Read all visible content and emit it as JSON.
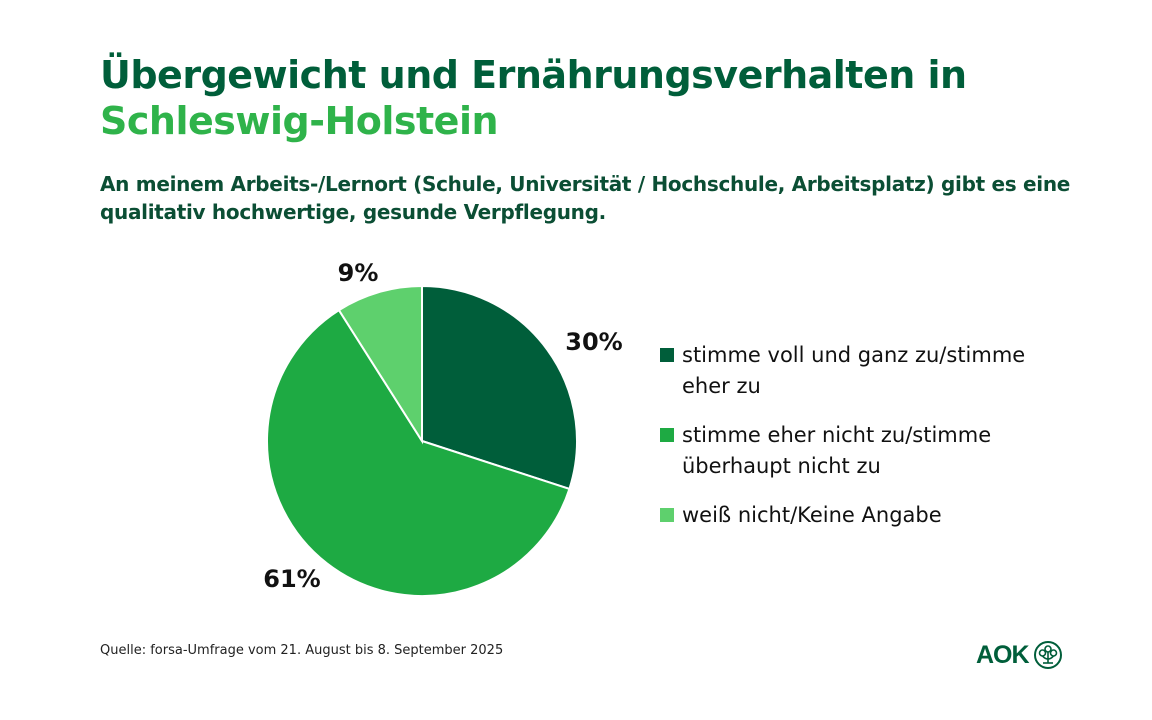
{
  "title": {
    "line1": "Übergewicht und Ernährungsverhalten in",
    "line2": "Schleswig-Holstein"
  },
  "subtitle": "An meinem Arbeits-/Lernort (Schule, Universität / Hochschule, Arbeitsplatz) gibt es eine qualitativ hochwertige, gesunde Verpflegung.",
  "chart_data": {
    "type": "pie",
    "title": "An meinem Arbeits-/Lernort (Schule, Universität / Hochschule, Arbeitsplatz) gibt es eine qualitativ hochwertige, gesunde Verpflegung.",
    "categories": [
      "stimme voll und ganz zu/stimme eher zu",
      "stimme eher nicht zu/stimme überhaupt nicht zu",
      "weiß nicht/Keine Angabe"
    ],
    "values": [
      30,
      61,
      9
    ],
    "labels": [
      "30%",
      "61%",
      "9%"
    ],
    "colors": [
      "#005e3a",
      "#1eaa43",
      "#5ed06d"
    ],
    "start_angle": "12 o'clock, clockwise",
    "legend_position": "right"
  },
  "legend": [
    {
      "label": "stimme voll und ganz zu/stimme eher zu",
      "color": "#005e3a"
    },
    {
      "label": "stimme eher nicht zu/stimme überhaupt nicht zu",
      "color": "#1eaa43"
    },
    {
      "label": "weiß nicht/Keine Angabe",
      "color": "#5ed06d"
    }
  ],
  "source": "Quelle: forsa-Umfrage vom 21. August bis 8. September 2025",
  "logo": {
    "text": "AOK",
    "icon": "aok-tree-icon"
  }
}
